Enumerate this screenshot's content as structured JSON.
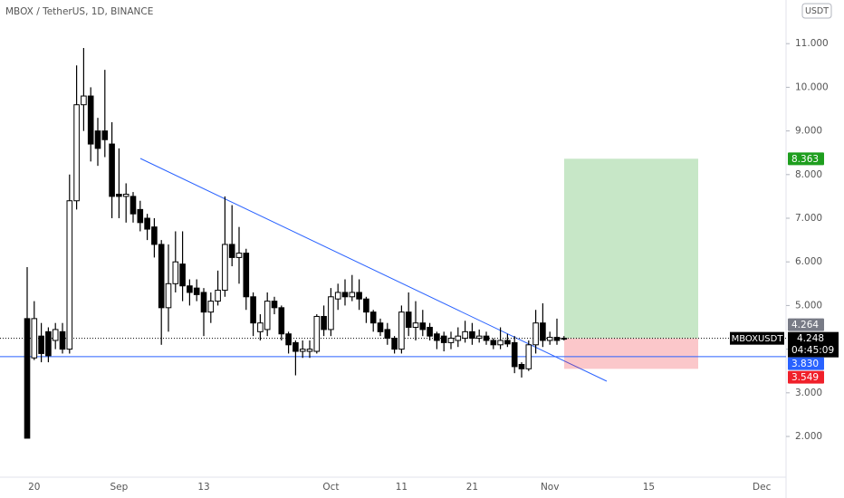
{
  "chart_data": {
    "type": "candlestick",
    "title": "MBOX / TetherUS, 1D, BINANCE",
    "currency": "USDT",
    "categories": [
      null,
      "20",
      null,
      null,
      null,
      null,
      null,
      null,
      null,
      null,
      null,
      null,
      null,
      "Sep",
      null,
      null,
      null,
      null,
      null,
      null,
      null,
      null,
      null,
      null,
      null,
      "13",
      null,
      null,
      null,
      null,
      null,
      null,
      null,
      null,
      null,
      null,
      null,
      null,
      null,
      null,
      null,
      null,
      null,
      "Oct",
      null,
      null,
      null,
      null,
      null,
      null,
      null,
      null,
      null,
      "11",
      null,
      null,
      null,
      null,
      null,
      null,
      null,
      null,
      null,
      "21",
      null,
      null,
      null,
      null,
      null,
      null,
      null,
      null,
      null,
      null,
      "Nov",
      null,
      null,
      null,
      null,
      null,
      null,
      null,
      null,
      null,
      null,
      null,
      null,
      null,
      "15",
      null,
      null,
      null,
      null,
      null,
      null,
      null,
      null,
      null,
      null,
      null,
      null,
      null,
      null,
      null,
      "Dec",
      null,
      null,
      null
    ],
    "open": [
      4.7,
      3.8,
      4.3,
      4.4,
      4.2,
      4.4,
      4.0,
      7.4,
      9.6,
      9.8,
      9.0,
      9.0,
      8.7,
      7.55,
      7.5,
      7.5,
      7.2,
      7.0,
      6.8,
      6.4,
      4.95,
      5.5,
      5.95,
      5.45,
      5.4,
      5.3,
      4.85,
      5.1,
      5.35,
      6.4,
      6.1,
      6.2,
      5.2,
      4.4,
      4.45,
      5.1,
      4.95,
      4.35,
      4.15,
      3.95,
      3.95,
      3.95,
      4.75,
      4.45,
      5.15,
      5.3,
      5.2,
      5.3,
      5.15,
      4.85,
      4.6,
      4.45,
      4.25,
      4.0,
      4.85,
      4.5,
      4.6,
      4.5,
      4.35,
      4.3,
      4.15,
      4.2,
      4.25,
      4.4,
      4.25,
      4.3,
      4.2,
      4.1,
      4.2,
      4.15,
      3.65,
      3.55,
      4.1,
      4.6,
      4.2,
      4.27,
      4.25,
      null,
      null,
      null,
      null,
      null,
      null,
      null,
      null,
      null,
      null,
      null,
      null,
      null,
      null,
      null,
      null,
      null,
      null,
      null,
      null,
      null,
      null,
      null,
      null,
      null,
      null,
      null,
      null,
      null,
      null,
      null
    ],
    "high": [
      5.88,
      5.1,
      4.6,
      4.5,
      4.6,
      4.6,
      8.0,
      10.5,
      10.9,
      10.0,
      9.3,
      10.4,
      9.2,
      8.6,
      7.8,
      7.6,
      7.4,
      7.1,
      7.0,
      6.5,
      6.4,
      6.7,
      6.7,
      5.6,
      5.6,
      5.4,
      5.3,
      5.8,
      7.5,
      7.3,
      6.8,
      6.3,
      5.3,
      4.8,
      5.3,
      5.2,
      5.0,
      4.4,
      4.2,
      4.2,
      4.2,
      4.8,
      5.0,
      5.4,
      5.5,
      5.6,
      5.7,
      5.6,
      5.2,
      4.9,
      4.7,
      4.6,
      4.3,
      5.0,
      5.3,
      5.1,
      4.9,
      4.6,
      4.4,
      4.4,
      4.4,
      4.5,
      4.65,
      4.6,
      4.45,
      4.4,
      4.25,
      4.5,
      4.35,
      4.3,
      3.7,
      4.2,
      4.9,
      5.05,
      4.4,
      4.7,
      4.3,
      null,
      null,
      null,
      null,
      null,
      null,
      null,
      null,
      null,
      null,
      null,
      null,
      null,
      null,
      null,
      null,
      null,
      null,
      null,
      null,
      null,
      null,
      null,
      null,
      null,
      null,
      null,
      null,
      null,
      null,
      null
    ],
    "low": [
      1.96,
      3.75,
      3.7,
      3.7,
      4.0,
      3.9,
      3.9,
      7.2,
      9.0,
      8.3,
      8.2,
      8.4,
      7.0,
      7.0,
      6.9,
      6.9,
      6.7,
      6.5,
      6.1,
      4.1,
      4.4,
      5.3,
      5.1,
      5.0,
      5.1,
      4.3,
      4.6,
      5.0,
      5.2,
      5.9,
      5.5,
      4.9,
      4.3,
      4.2,
      4.3,
      4.8,
      4.2,
      3.9,
      3.4,
      3.8,
      3.8,
      3.9,
      4.3,
      4.3,
      4.9,
      5.0,
      5.1,
      4.9,
      4.6,
      4.4,
      4.3,
      4.1,
      3.9,
      3.9,
      4.3,
      4.2,
      4.3,
      4.2,
      4.0,
      3.95,
      4.0,
      4.05,
      4.15,
      4.1,
      4.15,
      4.1,
      4.0,
      4.0,
      4.05,
      3.45,
      3.35,
      3.5,
      3.9,
      4.05,
      4.1,
      4.1,
      4.2,
      null,
      null,
      null,
      null,
      null,
      null,
      null,
      null,
      null,
      null,
      null,
      null,
      null,
      null,
      null,
      null,
      null,
      null,
      null,
      null,
      null,
      null,
      null,
      null,
      null,
      null,
      null,
      null,
      null,
      null,
      null
    ],
    "close": [
      1.96,
      4.7,
      3.9,
      3.85,
      4.45,
      4.0,
      7.4,
      9.6,
      9.8,
      8.7,
      8.6,
      8.8,
      7.5,
      7.5,
      7.55,
      7.1,
      6.9,
      6.75,
      6.4,
      4.95,
      5.5,
      6.0,
      5.45,
      5.3,
      5.25,
      4.85,
      5.1,
      5.35,
      6.4,
      6.1,
      6.2,
      5.2,
      4.6,
      4.6,
      5.1,
      4.95,
      4.35,
      4.1,
      3.95,
      4.0,
      4.0,
      4.75,
      4.45,
      5.2,
      5.3,
      5.2,
      5.3,
      5.15,
      4.85,
      4.6,
      4.4,
      4.25,
      4.0,
      4.85,
      4.5,
      4.6,
      4.45,
      4.3,
      4.2,
      4.15,
      4.25,
      4.3,
      4.4,
      4.25,
      4.3,
      4.2,
      4.1,
      4.2,
      4.12,
      3.6,
      3.55,
      4.1,
      4.6,
      4.2,
      4.27,
      4.2,
      4.248,
      null,
      null,
      null,
      null,
      null,
      null,
      null,
      null,
      null,
      null,
      null,
      null,
      null,
      null,
      null,
      null,
      null,
      null,
      null,
      null,
      null,
      null,
      null,
      null,
      null,
      null,
      null,
      null,
      null,
      null,
      null
    ],
    "up_color": "#ffffff",
    "down_color": "#000000",
    "ylim": [
      1.067,
      12.0
    ],
    "yticks": [
      {
        "value": 2,
        "label": "2.000"
      },
      {
        "value": 3,
        "label": "3.000"
      },
      {
        "value": 4,
        "label": "4.000"
      },
      {
        "value": 5,
        "label": "5.000"
      },
      {
        "value": 6,
        "label": "6.000"
      },
      {
        "value": 7,
        "label": "7.000"
      },
      {
        "value": 8,
        "label": "8.000"
      },
      {
        "value": 9,
        "label": "9.000"
      },
      {
        "value": 10,
        "label": "10.000"
      },
      {
        "value": 11,
        "label": "11.000"
      }
    ],
    "grid": false,
    "position": {
      "target": 8.363,
      "target_color": "#1e9e1e",
      "stop": 3.549,
      "stop_color": "#f0202a"
    },
    "level": {
      "value": 3.83,
      "label": "3.830",
      "color": "#2962ff"
    },
    "marker": {
      "value": 4.264,
      "color": "#787b86"
    },
    "last": {
      "symbol": "MBOXUSDT",
      "price": 4.248,
      "countdown": "04:45:09",
      "color": "#000000"
    }
  }
}
